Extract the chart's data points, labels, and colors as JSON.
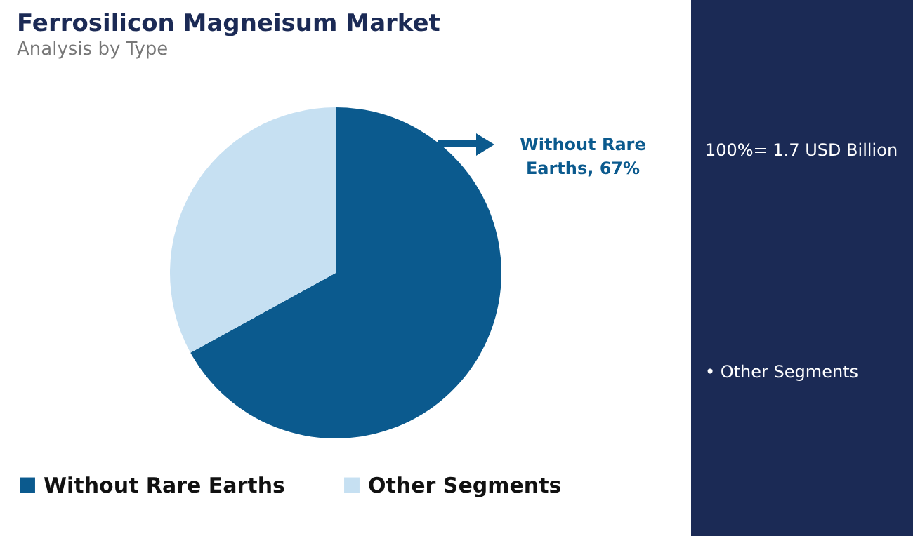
{
  "chart_data": {
    "type": "pie",
    "title": "Ferrosilicon Magneisum Market",
    "subtitle": "Analysis by Type",
    "categories": [
      "Without Rare Earths",
      "Other Segments"
    ],
    "values": [
      67,
      33
    ],
    "colors": [
      "#0b5a8e",
      "#c6e0f2"
    ],
    "value_labels": [
      "Without Rare Earths, 67%",
      null
    ],
    "legend": "bottom",
    "annotations": [
      "100%= 1.7 USD Billion",
      "• Other Segments"
    ]
  }
}
